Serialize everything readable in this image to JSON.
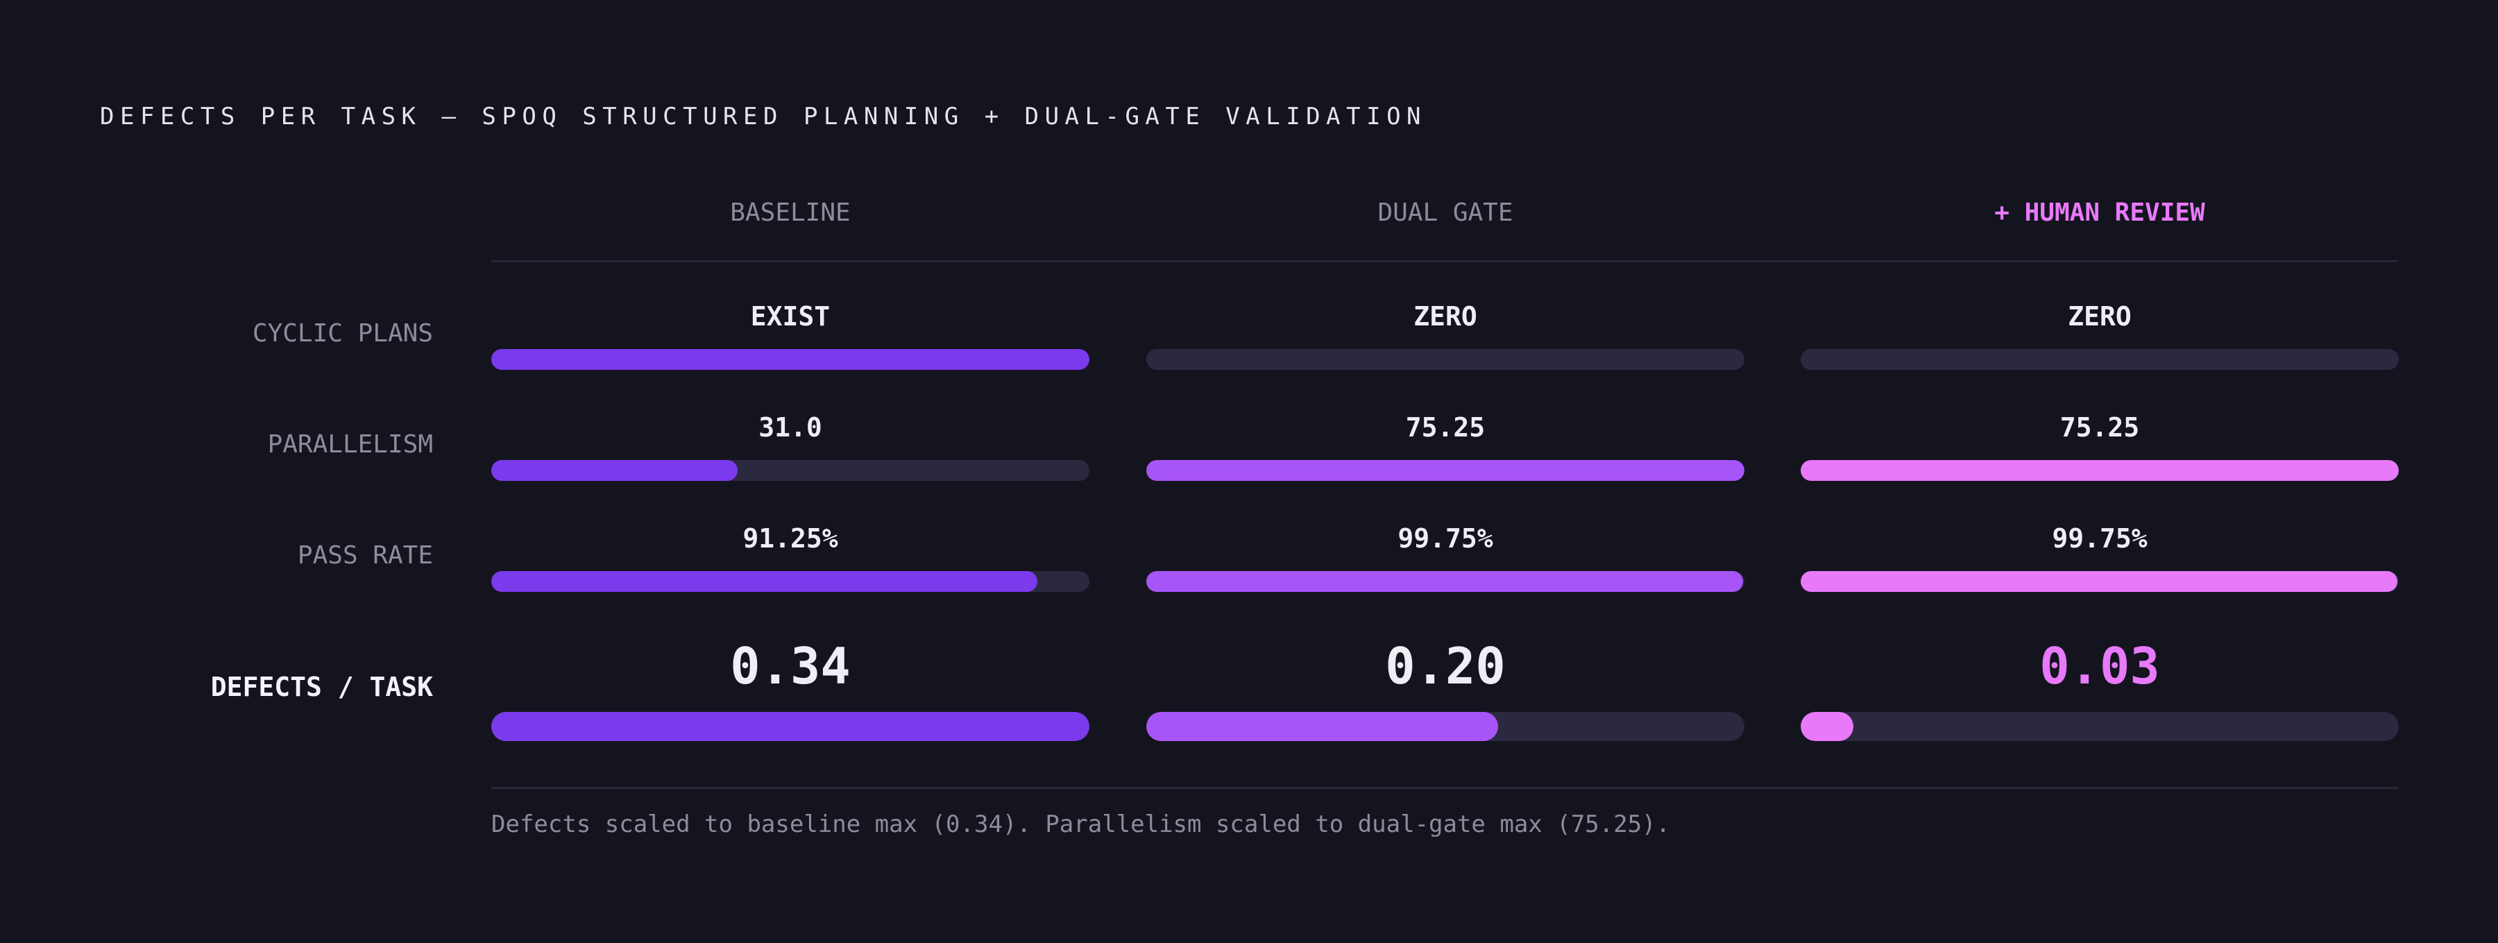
{
  "title": "DEFECTS PER TASK — SPOQ STRUCTURED PLANNING + DUAL-GATE VALIDATION",
  "footnote": "Defects scaled to baseline max (0.34). Parallelism scaled to dual-gate max (75.25).",
  "colors": {
    "background": "#14141f",
    "track": "#2b2940",
    "baseline": "#7c3aed",
    "dual_gate": "#a855f7",
    "human_review": "#e879f9"
  },
  "chart_data": {
    "type": "table",
    "columns": [
      "BASELINE",
      "DUAL GATE",
      "+ HUMAN REVIEW"
    ],
    "highlight_column": "+ HUMAN REVIEW",
    "rows": [
      {
        "label": "CYCLIC PLANS",
        "display": [
          "EXIST",
          "ZERO",
          "ZERO"
        ],
        "fill": [
          1.0,
          0.0,
          0.0
        ]
      },
      {
        "label": "PARALLELISM",
        "display": [
          "31.0",
          "75.25",
          "75.25"
        ],
        "values": [
          31.0,
          75.25,
          75.25
        ],
        "scale_max": 75.25
      },
      {
        "label": "PASS RATE",
        "display": [
          "91.25%",
          "99.75%",
          "99.75%"
        ],
        "values": [
          91.25,
          99.75,
          99.75
        ],
        "scale_max": 100
      },
      {
        "label": "DEFECTS / TASK",
        "display": [
          "0.34",
          "0.20",
          "0.03"
        ],
        "values": [
          0.34,
          0.2,
          0.03
        ],
        "scale_max": 0.34,
        "emphasis": true
      }
    ]
  }
}
